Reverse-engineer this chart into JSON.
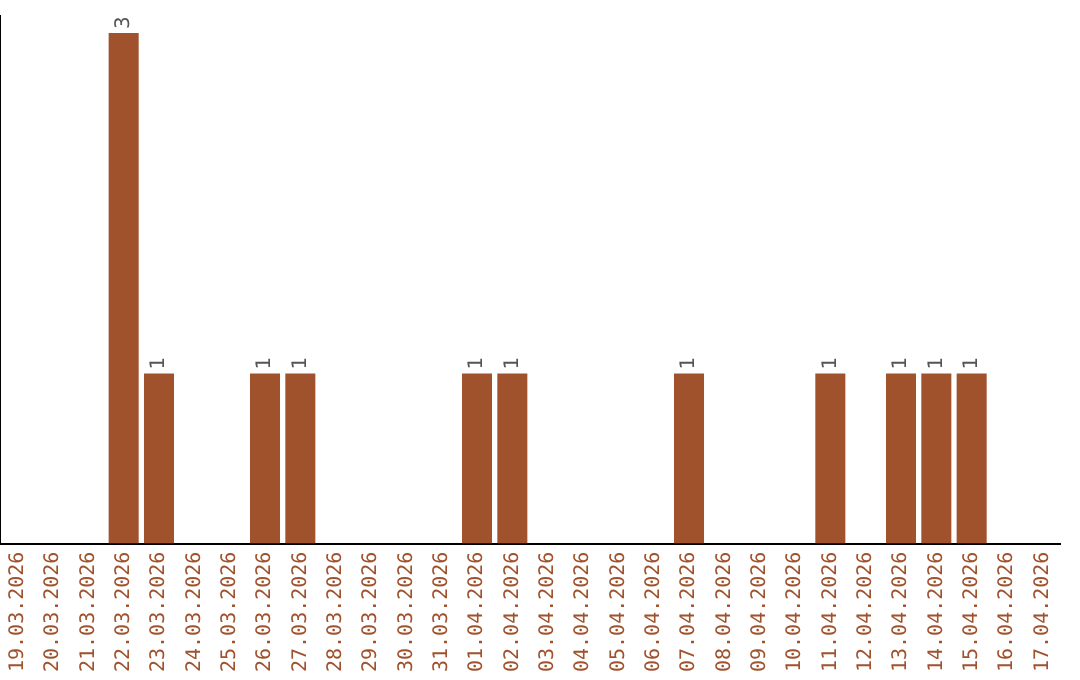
{
  "chart_data": {
    "type": "bar",
    "categories": [
      "19.03.2026",
      "20.03.2026",
      "21.03.2026",
      "22.03.2026",
      "23.03.2026",
      "24.03.2026",
      "25.03.2026",
      "26.03.2026",
      "27.03.2026",
      "28.03.2026",
      "29.03.2026",
      "30.03.2026",
      "31.03.2026",
      "01.04.2026",
      "02.04.2026",
      "03.04.2026",
      "04.04.2026",
      "05.04.2026",
      "06.04.2026",
      "07.04.2026",
      "08.04.2026",
      "09.04.2026",
      "10.04.2026",
      "11.04.2026",
      "12.04.2026",
      "13.04.2026",
      "14.04.2026",
      "15.04.2026",
      "16.04.2026",
      "17.04.2026"
    ],
    "values": [
      0,
      0,
      0,
      3,
      1,
      0,
      0,
      1,
      1,
      0,
      0,
      0,
      0,
      1,
      1,
      0,
      0,
      0,
      0,
      1,
      0,
      0,
      0,
      1,
      0,
      1,
      1,
      1,
      0,
      0
    ],
    "value_labels": [
      null,
      null,
      null,
      "3",
      "1",
      null,
      null,
      "1",
      "1",
      null,
      null,
      null,
      null,
      "1",
      "1",
      null,
      null,
      null,
      null,
      "1",
      null,
      null,
      null,
      "1",
      null,
      "1",
      "1",
      "1",
      null,
      null
    ],
    "color": "#a0522d",
    "ylim": [
      0,
      3.1
    ],
    "tick_labels": "x",
    "grid": false,
    "legend": false
  }
}
